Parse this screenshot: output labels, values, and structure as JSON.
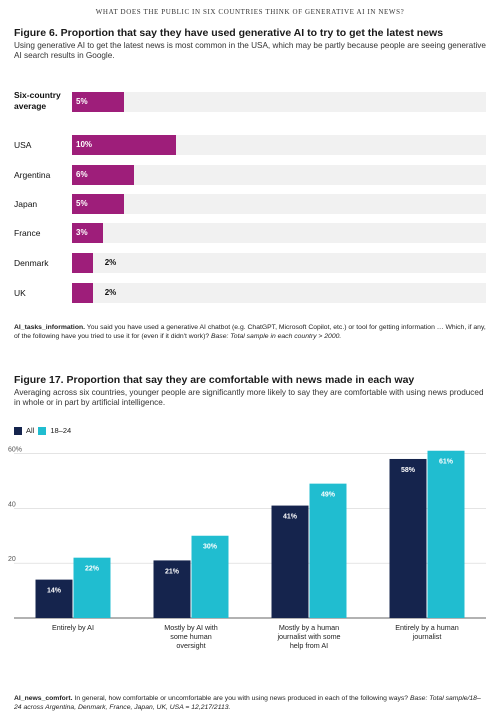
{
  "running_head": "WHAT DOES THE PUBLIC IN SIX COUNTRIES THINK OF GENERATIVE AI IN NEWS?",
  "fig6": {
    "title": "Figure 6. Proportion that say they have used generative AI to try to get the latest news",
    "subtitle": "Using generative AI to get the latest news is most common in the USA, which may be partly because people are seeing generative AI search results in Google.",
    "note_code": "AI_tasks_information.",
    "note_text": " You said you have used a generative AI chatbot (e.g. ChatGPT, Microsoft Copilot, etc.) or tool for getting information … Which, if any, of the following have you tried to use it for (even if it didn't work)?",
    "note_base": " Base: Total sample in each country > 2000.",
    "color": "#9e1e7a"
  },
  "fig17": {
    "title": "Figure 17. Proportion that say they are comfortable with news made in each way",
    "subtitle": "Averaging across six countries, younger people are significantly more likely to say they are comfortable with using news produced in whole or in part by artificial intelligence.",
    "note_code": "AI_news_comfort.",
    "note_text": " In general, how comfortable or uncomfortable are you with using news produced in each of the following ways?",
    "note_base": " Base: Total sample/18–24 across Argentina, Denmark, France, Japan, UK, USA = 12,217/2113."
  },
  "chart_data": [
    {
      "type": "bar",
      "orientation": "horizontal",
      "categories": [
        "Six-country average",
        "USA",
        "Argentina",
        "Japan",
        "France",
        "Denmark",
        "UK"
      ],
      "values": [
        5,
        10,
        6,
        5,
        3,
        2,
        2
      ],
      "value_labels": [
        "5%",
        "10%",
        "6%",
        "5%",
        "3%",
        "2%",
        "2%"
      ],
      "xlim": [
        0,
        40
      ],
      "grid": false
    },
    {
      "type": "bar",
      "orientation": "vertical",
      "categories": [
        "Entirely by AI",
        "Mostly by AI with some human oversight",
        "Mostly by a human journalist with some help from AI",
        "Entirely by a human journalist"
      ],
      "category_lines": [
        [
          "Entirely by AI"
        ],
        [
          "Mostly by AI with",
          "some human",
          "oversight"
        ],
        [
          "Mostly by a human",
          "journalist with some",
          "help from AI"
        ],
        [
          "Entirely by a human",
          "journalist"
        ]
      ],
      "series": [
        {
          "name": "All",
          "values": [
            14,
            21,
            41,
            58
          ],
          "labels": [
            "14%",
            "21%",
            "41%",
            "58%"
          ],
          "color": "#15244d"
        },
        {
          "name": "18–24",
          "values": [
            22,
            30,
            49,
            61
          ],
          "labels": [
            "22%",
            "30%",
            "49%",
            "61%"
          ],
          "color": "#20bdd0"
        }
      ],
      "yticks": [
        "20",
        "40",
        "60%"
      ],
      "ytick_values": [
        20,
        40,
        60
      ],
      "ylim": [
        0,
        62
      ],
      "grid": true,
      "legend": "top-left"
    }
  ]
}
